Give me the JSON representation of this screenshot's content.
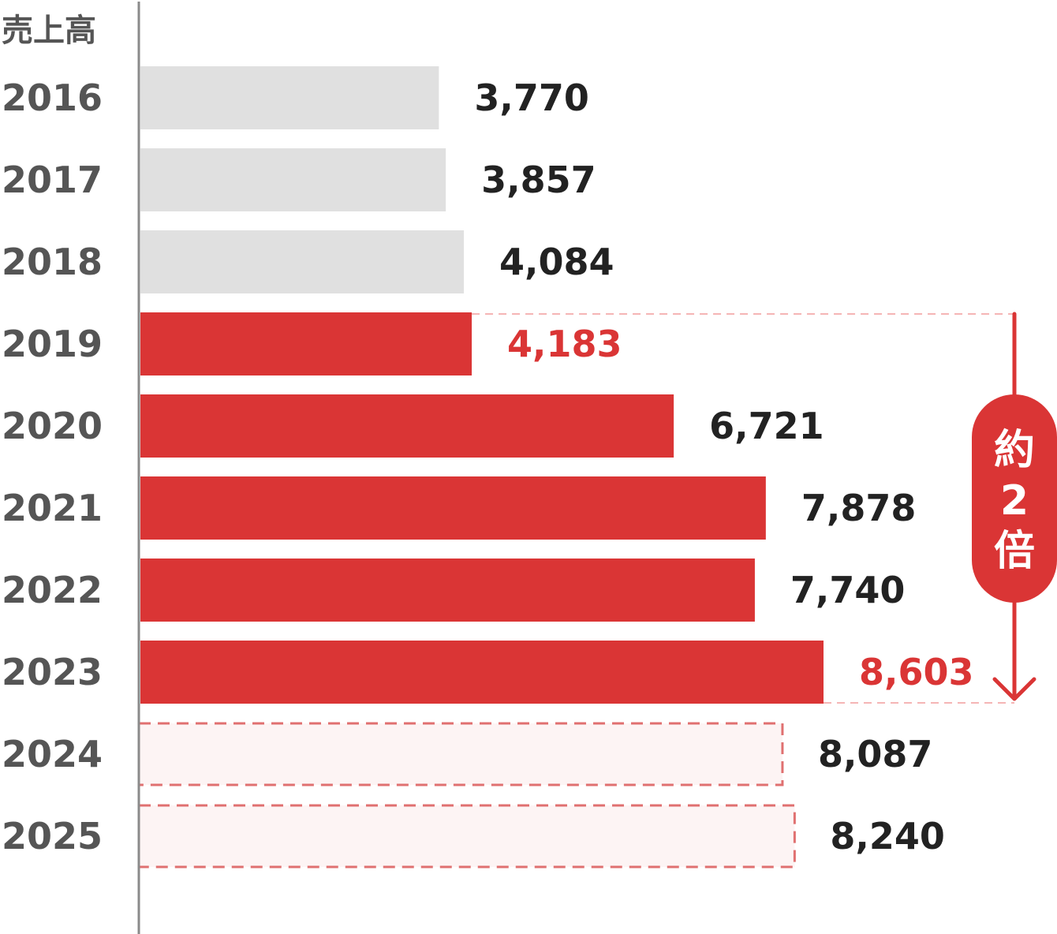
{
  "chart_data": {
    "type": "bar",
    "orientation": "horizontal",
    "ylabel": "売上高",
    "categories": [
      "2016",
      "2017",
      "2018",
      "2019",
      "2020",
      "2021",
      "2022",
      "2023",
      "2024",
      "2025"
    ],
    "values": [
      3770,
      3857,
      4084,
      4183,
      6721,
      7878,
      7740,
      8603,
      8087,
      8240
    ],
    "value_labels": [
      "3,770",
      "3,857",
      "4,084",
      "4,183",
      "6,721",
      "7,878",
      "7,740",
      "8,603",
      "8,087",
      "8,240"
    ],
    "bar_styles": [
      "past",
      "past",
      "past",
      "actual",
      "actual",
      "actual",
      "actual",
      "actual",
      "forecast",
      "forecast"
    ],
    "highlight_labels": [
      "2019",
      "2023"
    ],
    "annotation": {
      "text": [
        "約",
        "2",
        "倍"
      ],
      "from": "2019",
      "to": "2023"
    },
    "xlim": [
      0,
      8603
    ]
  },
  "colors": {
    "past_bar": "#e0e0e0",
    "actual_bar": "#da3535",
    "forecast_fill": "#fdf4f4",
    "forecast_stroke": "#e07070",
    "highlight_text": "#da3535",
    "value_text": "#222222",
    "year_text": "#555555",
    "axis": "#8a8a8a",
    "guide_dash": "#f5b5b5"
  }
}
